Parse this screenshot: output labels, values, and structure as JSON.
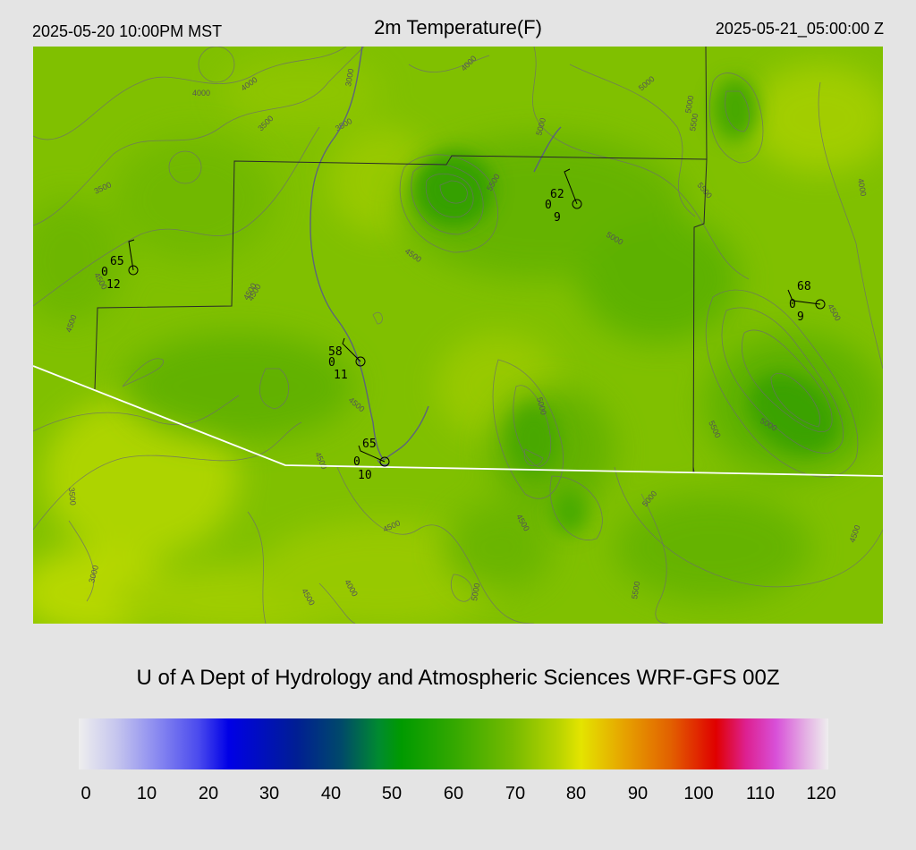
{
  "header": {
    "local_time": "2025-05-20 10:00PM MST",
    "title": "2m Temperature(F)",
    "utc_time": "2025-05-21_05:00:00 Z"
  },
  "credit": "U of A Dept of Hydrology and Atmospheric Sciences WRF-GFS 00Z",
  "colorbar": {
    "ticks": [
      "0",
      "10",
      "20",
      "30",
      "40",
      "50",
      "60",
      "70",
      "80",
      "90",
      "100",
      "110",
      "120"
    ],
    "colors": [
      "#eeeeee",
      "#8f8ff0",
      "#0000e6",
      "#00496a",
      "#009a00",
      "#77bb00",
      "#e4e400",
      "#e26000",
      "#e00000",
      "#d850d8"
    ]
  },
  "contour_labels": [
    "3000",
    "3500",
    "4000",
    "4500",
    "5000",
    "5500",
    "3500",
    "4000",
    "3500",
    "4500",
    "4500",
    "5000",
    "5000",
    "5500",
    "5000",
    "4000",
    "4000",
    "4500",
    "4500",
    "5000",
    "4500",
    "5500",
    "5000",
    "5500",
    "3500",
    "3000",
    "4500",
    "4000",
    "4500",
    "4500",
    "5000",
    "5500",
    "5000",
    "4500",
    "4500",
    "4500"
  ],
  "stations": [
    {
      "temp": "65",
      "cloud": "0",
      "dew": "12"
    },
    {
      "temp": "62",
      "cloud": "0",
      "dew": "9"
    },
    {
      "temp": "58",
      "cloud": "0",
      "dew": "11"
    },
    {
      "temp": "65",
      "cloud": "0",
      "dew": "10"
    },
    {
      "temp": "68",
      "cloud": "0",
      "dew": "9"
    }
  ]
}
